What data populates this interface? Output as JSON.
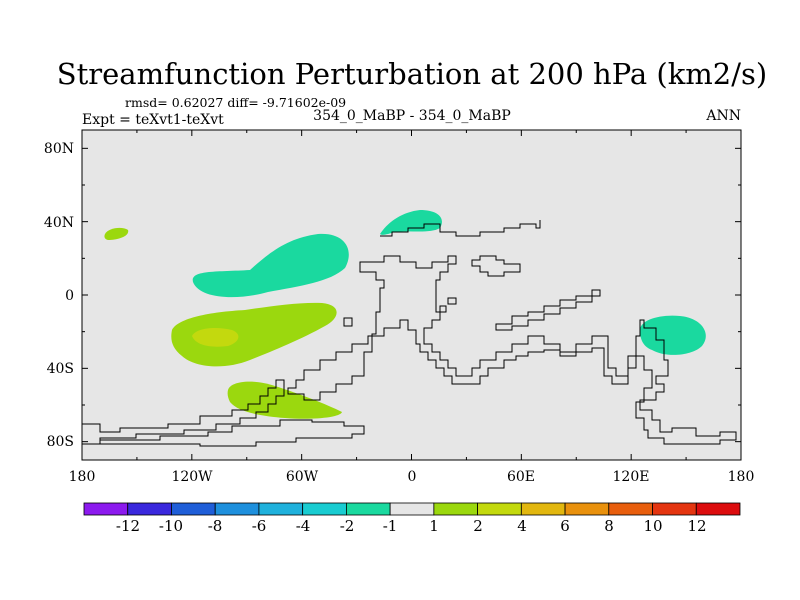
{
  "chart_data": {
    "type": "contour-map",
    "title": "Streamfunction Perturbation at 200 hPa (km2/s)",
    "stats_line": "rmsd= 0.62027 diff= -9.71602e-09",
    "left_subtitle": "Expt = teXvt1-teXvt",
    "center_subtitle": "354_0_MaBP - 354_0_MaBP",
    "right_subtitle": "ANN",
    "lon_range": [
      -180,
      180
    ],
    "lat_range": [
      -90,
      90
    ],
    "x_ticks": [
      {
        "lon": -180,
        "label": "180"
      },
      {
        "lon": -120,
        "label": "120W"
      },
      {
        "lon": -60,
        "label": "60W"
      },
      {
        "lon": 0,
        "label": "0"
      },
      {
        "lon": 60,
        "label": "60E"
      },
      {
        "lon": 120,
        "label": "120E"
      },
      {
        "lon": 180,
        "label": "180"
      }
    ],
    "y_ticks": [
      {
        "lat": 80,
        "label": "80N"
      },
      {
        "lat": 40,
        "label": "40N"
      },
      {
        "lat": 0,
        "label": "0"
      },
      {
        "lat": -40,
        "label": "40S"
      },
      {
        "lat": -80,
        "label": "80S"
      }
    ],
    "colorbar": {
      "levels": [
        "-12",
        "-10",
        "-8",
        "-6",
        "-4",
        "-2",
        "-1",
        "1",
        "2",
        "4",
        "6",
        "8",
        "10",
        "12"
      ],
      "colors": [
        "#8c1aee",
        "#3a28dd",
        "#1f5ed8",
        "#1e90dd",
        "#1fb1dc",
        "#19ccd1",
        "#1ad99f",
        "#e6e6e6",
        "#9bd80e",
        "#c3d90e",
        "#e2b70f",
        "#e9910d",
        "#e85e0d",
        "#e43510",
        "#dc0c0e"
      ]
    },
    "contour_regions": [
      {
        "range": "-2 to -1",
        "color": "#1ad99f",
        "centers": [
          {
            "lon": -75,
            "lat": 20
          },
          {
            "lon": 5,
            "lat": 40
          },
          {
            "lon": 145,
            "lat": -22
          }
        ]
      },
      {
        "range": "1 to 2",
        "color": "#9bd80e",
        "centers": [
          {
            "lon": -170,
            "lat": 34
          },
          {
            "lon": -85,
            "lat": -20
          },
          {
            "lon": -70,
            "lat": -58
          }
        ]
      },
      {
        "range": "2 to 4",
        "color": "#c3d90e",
        "centers": [
          {
            "lon": -110,
            "lat": -22
          }
        ]
      }
    ]
  }
}
